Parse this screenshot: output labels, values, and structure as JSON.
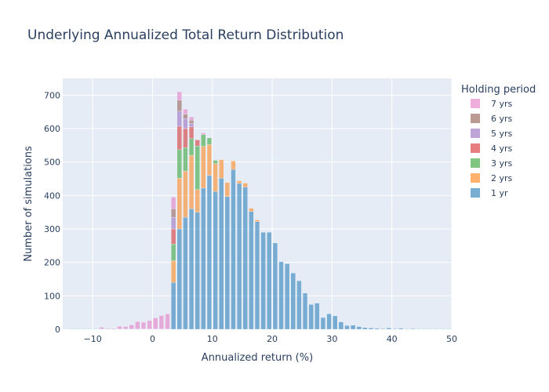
{
  "chart_data": {
    "type": "bar",
    "barmode": "stack",
    "title": "Underlying Annualized Total Return Distribution",
    "xlabel": "Annualized return (%)",
    "ylabel": "Number of simulations",
    "xlim": [
      -15,
      50
    ],
    "ylim": [
      0,
      750
    ],
    "bin_width": 1,
    "x_ticks": [
      -10,
      0,
      10,
      20,
      30,
      40,
      50
    ],
    "y_ticks": [
      0,
      100,
      200,
      300,
      400,
      500,
      600,
      700
    ],
    "legend_title": "Holding period",
    "legend_position": "right",
    "background": "#e5ecf6",
    "series": [
      {
        "name": "1 yr",
        "color": "#1f77b4",
        "points": [
          [
            -14,
            1
          ],
          [
            -13,
            1
          ],
          [
            -12,
            1
          ],
          [
            -11,
            1
          ],
          [
            -10,
            1
          ],
          [
            -9,
            1
          ],
          [
            -8,
            1
          ],
          [
            -7,
            1
          ],
          [
            -6,
            1
          ],
          [
            -5,
            1
          ],
          [
            -4,
            1
          ],
          [
            -3,
            1
          ],
          [
            -2,
            1
          ],
          [
            -1,
            1
          ],
          [
            0,
            1
          ],
          [
            1,
            1
          ],
          [
            2,
            1
          ],
          [
            3,
            140
          ],
          [
            4,
            300
          ],
          [
            5,
            335
          ],
          [
            6,
            360
          ],
          [
            7,
            350
          ],
          [
            8,
            422
          ],
          [
            9,
            460
          ],
          [
            10,
            412
          ],
          [
            11,
            452
          ],
          [
            12,
            397
          ],
          [
            13,
            478
          ],
          [
            14,
            436
          ],
          [
            15,
            425
          ],
          [
            16,
            352
          ],
          [
            17,
            322
          ],
          [
            18,
            290
          ],
          [
            19,
            290
          ],
          [
            20,
            258
          ],
          [
            21,
            202
          ],
          [
            22,
            196
          ],
          [
            23,
            168
          ],
          [
            24,
            145
          ],
          [
            25,
            108
          ],
          [
            26,
            74
          ],
          [
            27,
            78
          ],
          [
            28,
            35
          ],
          [
            29,
            46
          ],
          [
            30,
            40
          ],
          [
            31,
            22
          ],
          [
            32,
            11
          ],
          [
            33,
            12
          ],
          [
            34,
            8
          ],
          [
            35,
            5
          ],
          [
            36,
            4
          ],
          [
            37,
            3
          ],
          [
            38,
            2
          ],
          [
            39,
            4
          ],
          [
            40,
            2
          ],
          [
            41,
            3
          ],
          [
            42,
            1
          ],
          [
            43,
            2
          ],
          [
            44,
            1
          ],
          [
            45,
            1
          ],
          [
            46,
            1
          ],
          [
            47,
            1
          ],
          [
            48,
            1
          ],
          [
            49,
            1
          ]
        ]
      },
      {
        "name": "2 yrs",
        "color": "#ff7f0e",
        "points": [
          [
            3,
            65
          ],
          [
            4,
            152
          ],
          [
            5,
            138
          ],
          [
            6,
            160
          ],
          [
            7,
            68
          ],
          [
            8,
            125
          ],
          [
            9,
            92
          ],
          [
            10,
            83
          ],
          [
            11,
            55
          ],
          [
            12,
            42
          ],
          [
            13,
            25
          ],
          [
            14,
            8
          ],
          [
            15,
            12
          ],
          [
            16,
            10
          ],
          [
            17,
            5
          ]
        ]
      },
      {
        "name": "3 yrs",
        "color": "#2ca02c",
        "points": [
          [
            3,
            50
          ],
          [
            4,
            85
          ],
          [
            5,
            70
          ],
          [
            6,
            50
          ],
          [
            7,
            130
          ],
          [
            8,
            35
          ],
          [
            9,
            20
          ],
          [
            10,
            10
          ]
        ]
      },
      {
        "name": "4 yrs",
        "color": "#d62728",
        "points": [
          [
            3,
            45
          ],
          [
            4,
            70
          ],
          [
            5,
            57
          ],
          [
            6,
            35
          ],
          [
            7,
            18
          ]
        ]
      },
      {
        "name": "5 yrs",
        "color": "#9467bd",
        "points": [
          [
            3,
            35
          ],
          [
            4,
            45
          ],
          [
            5,
            30
          ],
          [
            6,
            10
          ]
        ]
      },
      {
        "name": "6 yrs",
        "color": "#8c564b",
        "points": [
          [
            3,
            25
          ],
          [
            4,
            33
          ],
          [
            5,
            13
          ],
          [
            6,
            10
          ]
        ]
      },
      {
        "name": "7 yrs",
        "color": "#e377c2",
        "points": [
          [
            -9,
            5
          ],
          [
            -8,
            2
          ],
          [
            -7,
            2
          ],
          [
            -6,
            8
          ],
          [
            -5,
            7
          ],
          [
            -4,
            12
          ],
          [
            -3,
            22
          ],
          [
            -2,
            20
          ],
          [
            -1,
            25
          ],
          [
            0,
            33
          ],
          [
            1,
            40
          ],
          [
            2,
            45
          ],
          [
            3,
            35
          ],
          [
            4,
            25
          ],
          [
            5,
            15
          ],
          [
            6,
            10
          ],
          [
            8,
            5
          ]
        ]
      }
    ]
  }
}
